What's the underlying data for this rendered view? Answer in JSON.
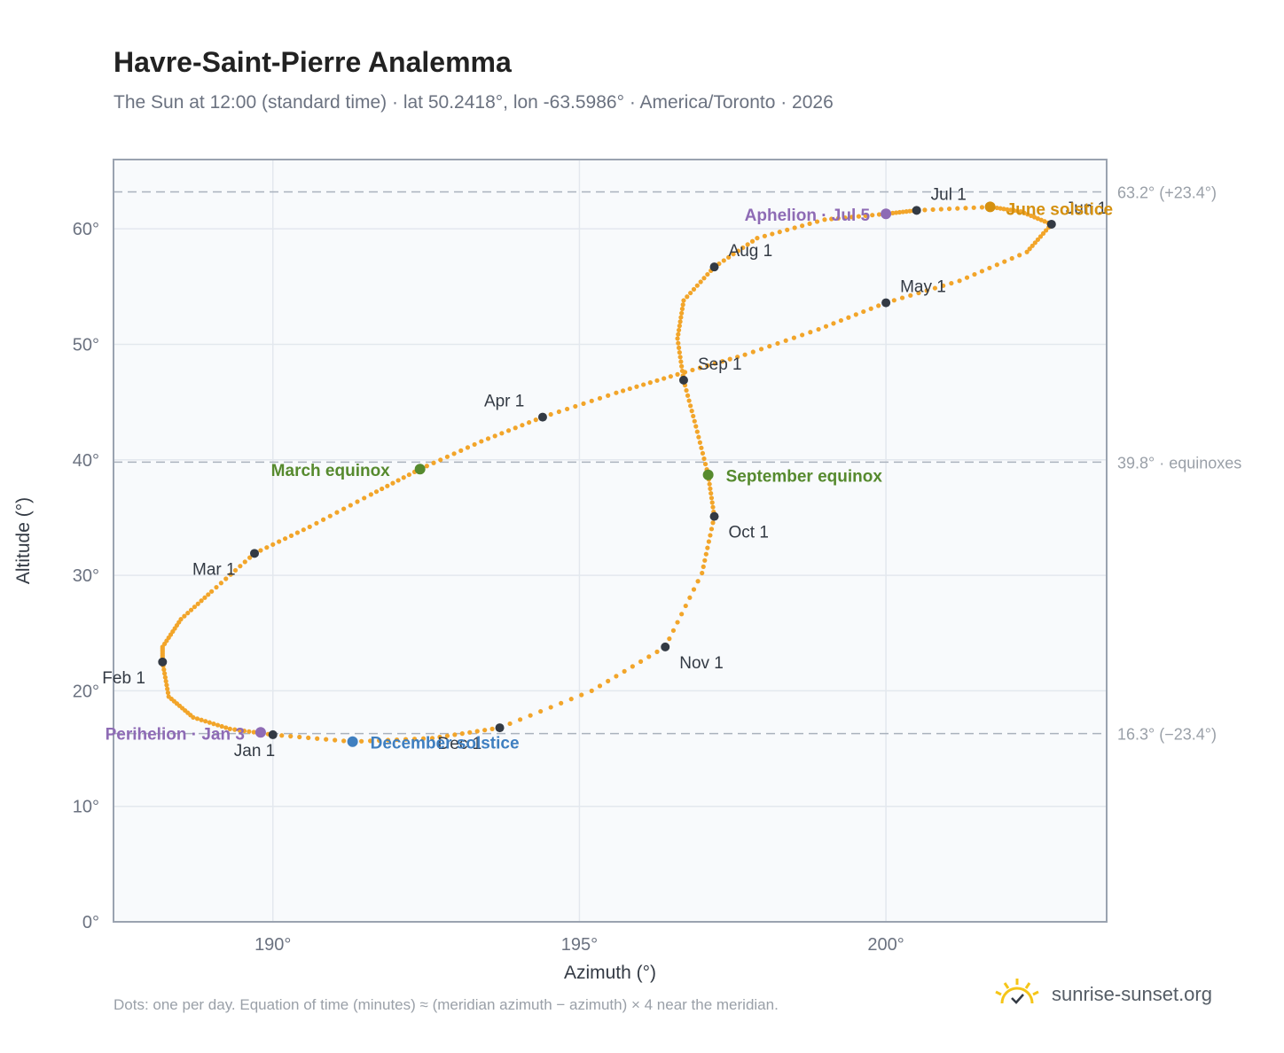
{
  "title": "Havre-Saint-Pierre Analemma",
  "subtitle": "The Sun at 12:00 (standard time) · lat 50.2418°, lon -63.5986° · America/Toronto · 2026",
  "footnote": "Dots: one per day. Equation of time (minutes) ≈ (meridian azimuth − azimuth) × 4 near the meridian.",
  "brand": {
    "text": "sunrise-sunset.org",
    "icon": "sun-logo-icon"
  },
  "colors": {
    "path": "#f2a52a",
    "month_marker": "#333a44",
    "equinox": "#568a2e",
    "june_solstice": "#d4900f",
    "december_solstice": "#3f7fc0",
    "apsis": "#8e6bb5",
    "axis": "#9aa3b0",
    "grid": "#e3e8ee",
    "plot_bg": "#f8fafc"
  },
  "chart_data": {
    "type": "scatter",
    "title": "Havre-Saint-Pierre Analemma",
    "xlabel": "Azimuth (°)",
    "ylabel": "Altitude (°)",
    "xlim": [
      187.4,
      203.6
    ],
    "ylim": [
      0,
      66
    ],
    "xticks": [
      190,
      195,
      200
    ],
    "yticks": [
      0,
      10,
      20,
      30,
      40,
      50,
      60
    ],
    "xtick_labels": [
      "190°",
      "195°",
      "200°"
    ],
    "ytick_labels": [
      "0°",
      "10°",
      "20°",
      "30°",
      "40°",
      "50°",
      "60°"
    ],
    "grid": true,
    "reference_lines": [
      {
        "y": 63.2,
        "label": "63.2° (+23.4°)"
      },
      {
        "y": 39.8,
        "label": "39.8° · equinoxes"
      },
      {
        "y": 16.3,
        "label": "16.3° (−23.4°)"
      }
    ],
    "series": [
      {
        "style": "daily-dots",
        "points": [
          [
            190.0,
            16.2
          ],
          [
            189.3,
            16.7
          ],
          [
            188.7,
            17.7
          ],
          [
            188.3,
            19.5
          ],
          [
            188.2,
            22.5
          ],
          [
            188.2,
            23.8
          ],
          [
            188.5,
            26.2
          ],
          [
            189.0,
            28.6
          ],
          [
            189.7,
            31.9
          ],
          [
            190.6,
            34.2
          ],
          [
            191.6,
            37.0
          ],
          [
            192.4,
            39.2
          ],
          [
            193.4,
            41.6
          ],
          [
            194.4,
            43.7
          ],
          [
            195.6,
            45.8
          ],
          [
            196.6,
            47.4
          ],
          [
            197.7,
            49.1
          ],
          [
            198.9,
            51.3
          ],
          [
            200.0,
            53.6
          ],
          [
            201.2,
            55.5
          ],
          [
            202.3,
            58.0
          ],
          [
            202.7,
            60.4
          ],
          [
            202.2,
            61.5
          ],
          [
            201.7,
            61.9
          ],
          [
            200.5,
            61.6
          ],
          [
            200.0,
            61.3
          ],
          [
            199.0,
            60.8
          ],
          [
            197.9,
            59.2
          ],
          [
            197.2,
            56.7
          ],
          [
            196.7,
            53.8
          ],
          [
            196.6,
            50.5
          ],
          [
            196.7,
            46.9
          ],
          [
            196.9,
            42.9
          ],
          [
            197.1,
            38.7
          ],
          [
            197.2,
            35.1
          ],
          [
            197.0,
            30.2
          ],
          [
            196.4,
            23.8
          ],
          [
            195.2,
            20.0
          ],
          [
            193.7,
            16.8
          ],
          [
            192.6,
            15.9
          ],
          [
            191.3,
            15.6
          ],
          [
            190.0,
            16.2
          ]
        ]
      },
      {
        "name": "month markers",
        "points": [
          {
            "label": "Jan 1",
            "az": 190.0,
            "alt": 16.2
          },
          {
            "label": "Feb 1",
            "az": 188.2,
            "alt": 22.5
          },
          {
            "label": "Mar 1",
            "az": 189.7,
            "alt": 31.9
          },
          {
            "label": "Apr 1",
            "az": 194.4,
            "alt": 43.7
          },
          {
            "label": "May 1",
            "az": 200.0,
            "alt": 53.6
          },
          {
            "label": "Jun 1",
            "az": 202.7,
            "alt": 60.4
          },
          {
            "label": "Jul 1",
            "az": 200.5,
            "alt": 61.6
          },
          {
            "label": "Aug 1",
            "az": 197.2,
            "alt": 56.7
          },
          {
            "label": "Sep 1",
            "az": 196.7,
            "alt": 46.9
          },
          {
            "label": "Oct 1",
            "az": 197.2,
            "alt": 35.1
          },
          {
            "label": "Nov 1",
            "az": 196.4,
            "alt": 23.8
          },
          {
            "label": "Dec 1",
            "az": 193.7,
            "alt": 16.8
          }
        ]
      },
      {
        "name": "events",
        "points": [
          {
            "label": "March equinox",
            "az": 192.4,
            "alt": 39.2,
            "kind": "equinox"
          },
          {
            "label": "September equinox",
            "az": 197.1,
            "alt": 38.7,
            "kind": "equinox"
          },
          {
            "label": "June solstice",
            "az": 201.7,
            "alt": 61.9,
            "kind": "june_solstice"
          },
          {
            "label": "December solstice",
            "az": 191.3,
            "alt": 15.6,
            "kind": "december_solstice"
          },
          {
            "label": "Perihelion · Jan 3",
            "az": 189.8,
            "alt": 16.4,
            "kind": "apsis"
          },
          {
            "label": "Aphelion · Jul 5",
            "az": 200.0,
            "alt": 61.3,
            "kind": "apsis"
          }
        ]
      }
    ]
  }
}
